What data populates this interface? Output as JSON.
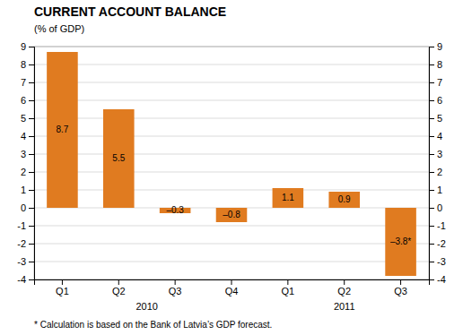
{
  "chart_data": {
    "type": "bar",
    "title": "CURRENT ACCOUNT BALANCE",
    "subtitle": "(% of GDP)",
    "categories": [
      "Q1",
      "Q2",
      "Q3",
      "Q4",
      "Q1",
      "Q2",
      "Q3"
    ],
    "values": [
      8.7,
      5.5,
      -0.3,
      -0.8,
      1.1,
      0.9,
      -3.8
    ],
    "value_labels": [
      "8.7",
      "5.5",
      "–0.3",
      "–0.8",
      "1.1",
      "0.9",
      "–3.8*"
    ],
    "data_labels": true,
    "color": "#E07B20",
    "ylim": [
      -4,
      9
    ],
    "yticks": [
      -4,
      -3,
      -2,
      -1,
      0,
      1,
      2,
      3,
      4,
      5,
      6,
      7,
      8,
      9
    ],
    "y2lim": [
      -4,
      9
    ],
    "y2ticks": [
      -4,
      -3,
      -2,
      -1,
      0,
      1,
      2,
      3,
      4,
      5,
      6,
      7,
      8,
      9
    ],
    "grid": true,
    "annotations": [
      {
        "text": "2010",
        "x": 1.5
      },
      {
        "text": "2011",
        "x": 5.0
      }
    ],
    "footnote": "* Calculation is based on the Bank of Latvia’s GDP forecast."
  }
}
